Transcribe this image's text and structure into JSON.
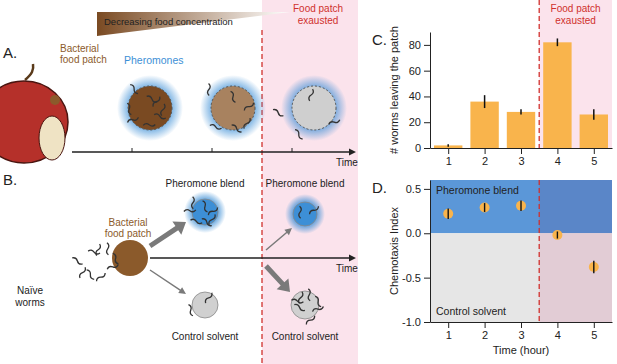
{
  "chart_data": [
    {
      "type": "bar",
      "title": "C.",
      "ylabel": "# worms leaving the patch",
      "x": [
        1,
        2,
        3,
        4,
        5
      ],
      "values": [
        2,
        36,
        28,
        82,
        26
      ],
      "errors": [
        1,
        5,
        2,
        3,
        4
      ],
      "color": "#f9b44c",
      "xlim": [
        0.5,
        5.5
      ],
      "xticks": [
        1,
        2,
        3,
        4,
        5
      ],
      "ylim": [
        0,
        90
      ],
      "yticks": [
        0,
        20,
        40,
        60,
        80
      ],
      "divider": {
        "x": 3.5,
        "label": [
          "Food patch",
          "exausted"
        ]
      }
    },
    {
      "type": "scatter",
      "title": "D.",
      "xlabel": "Time (hour)",
      "ylabel": "Chemotaxis Index",
      "x": [
        1,
        2,
        3,
        4,
        5
      ],
      "values": [
        0.22,
        0.29,
        0.31,
        -0.02,
        -0.38
      ],
      "errors": [
        0.06,
        0.05,
        0.06,
        0.04,
        0.07
      ],
      "color": "#f9b44c",
      "marker": "circle",
      "xlim": [
        0.5,
        5.5
      ],
      "xticks": [
        1,
        2,
        3,
        4,
        5
      ],
      "ylim": [
        -1.0,
        0.6
      ],
      "yticks": [
        {
          "value": -1.0,
          "label": "-1.0"
        },
        -0.5,
        {
          "value": 0,
          "label": "0.0"
        },
        0.5
      ],
      "bands": [
        {
          "label": "Pheromone blend",
          "range": [
            0,
            0.6
          ],
          "color": "#5b97d8"
        },
        {
          "label": "Control solvent",
          "range": [
            -1.0,
            0
          ],
          "color": "#e6e6e6"
        }
      ],
      "divider": {
        "x": 3.5
      }
    }
  ],
  "diagram": {
    "panel_a": {
      "label": "A.",
      "gradient": "Decreasing food concentration",
      "patch": [
        "Bacterial",
        "food patch"
      ],
      "pheromones": "Pheromones",
      "exhausted": [
        "Food patch",
        "exausted"
      ],
      "axis": "Time"
    },
    "panel_b": {
      "label": "B.",
      "patch": [
        "Bacterial",
        "food patch"
      ],
      "worms": [
        "Naïve",
        "worms"
      ],
      "before": [
        "Pheromone blend",
        "Control solvent"
      ],
      "after": [
        "Pheromone blend",
        "Control solvent"
      ],
      "axis": "Time"
    }
  }
}
